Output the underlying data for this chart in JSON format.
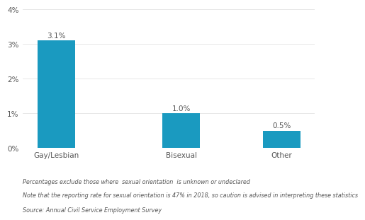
{
  "categories": [
    "Gay/Lesbian",
    "Bisexual",
    "Other"
  ],
  "values": [
    3.1,
    1.0,
    0.5
  ],
  "bar_labels": [
    "3.1%",
    "1.0%",
    "0.5%"
  ],
  "bar_color": "#1a9ac0",
  "ylim": [
    0,
    4
  ],
  "yticks": [
    0,
    1,
    2,
    3,
    4
  ],
  "ytick_labels": [
    "0%",
    "1%",
    "2%",
    "3%",
    "4%"
  ],
  "footnote_lines": [
    "Percentages exclude those where  sexual orientation  is unknown or undeclared",
    "Note that the reporting rate for sexual orientation is 47% in 2018, so caution is advised in interpreting these statistics",
    "Source: Annual Civil Service Employment Survey"
  ],
  "background_color": "#ffffff",
  "bar_label_fontsize": 7.5,
  "tick_fontsize": 7.5,
  "footnote_fontsize": 5.8,
  "category_fontsize": 7.5,
  "bar_width": 0.45,
  "x_positions": [
    0,
    1.5,
    2.7
  ]
}
